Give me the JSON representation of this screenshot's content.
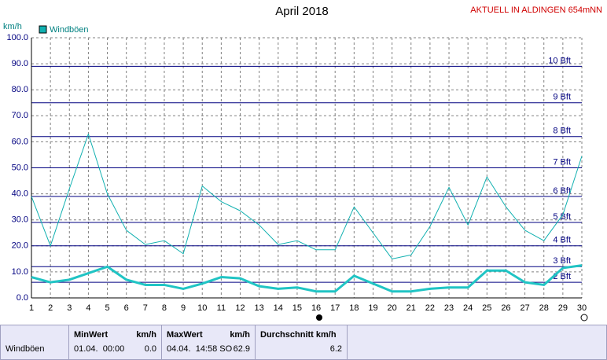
{
  "chart_data": {
    "type": "line",
    "title": "April 2018",
    "station": "AKTUELL IN ALDINGEN 654mNN",
    "y_label": "km/h",
    "x": [
      1,
      2,
      3,
      4,
      5,
      6,
      7,
      8,
      9,
      10,
      11,
      12,
      13,
      14,
      15,
      16,
      17,
      18,
      19,
      20,
      21,
      22,
      23,
      24,
      25,
      26,
      27,
      28,
      29,
      30
    ],
    "xlim": [
      1,
      30
    ],
    "xticks": [
      1,
      2,
      3,
      4,
      5,
      6,
      7,
      8,
      9,
      10,
      11,
      12,
      13,
      14,
      15,
      16,
      17,
      18,
      19,
      20,
      21,
      22,
      23,
      24,
      25,
      26,
      27,
      28,
      29,
      30
    ],
    "ylim": [
      0,
      100
    ],
    "yticks": [
      {
        "value": 0,
        "label": "0.0"
      },
      {
        "value": 10,
        "label": "10.0"
      },
      {
        "value": 20,
        "label": "20.0"
      },
      {
        "value": 30,
        "label": "30.0"
      },
      {
        "value": 40,
        "label": "40.0"
      },
      {
        "value": 50,
        "label": "50.0"
      },
      {
        "value": 60,
        "label": "60.0"
      },
      {
        "value": 70,
        "label": "70.0"
      },
      {
        "value": 80,
        "label": "80.0"
      },
      {
        "value": 90,
        "label": "90.0"
      },
      {
        "value": 100,
        "label": "100.0"
      }
    ],
    "grid": true,
    "legend": "top-left",
    "beaufort": [
      {
        "value": 6,
        "label": "2 Bft"
      },
      {
        "value": 12,
        "label": "3 Bft"
      },
      {
        "value": 20,
        "label": "4 Bft"
      },
      {
        "value": 29,
        "label": "5 Bft"
      },
      {
        "value": 39,
        "label": "6 Bft"
      },
      {
        "value": 50,
        "label": "7 Bft"
      },
      {
        "value": 62,
        "label": "8 Bft"
      },
      {
        "value": 75,
        "label": "9 Bft"
      },
      {
        "value": 89,
        "label": "10 Bft"
      }
    ],
    "series": [
      {
        "name": "Windböen",
        "color": "#10b0b0",
        "width": 1,
        "values": [
          39,
          20,
          42,
          63,
          40,
          26,
          20.5,
          22,
          17,
          43,
          37,
          33.5,
          28,
          20.5,
          22,
          18.5,
          18.5,
          35,
          25,
          15,
          16.5,
          27.5,
          42.5,
          28,
          46.5,
          35,
          26,
          22,
          32,
          54.5
        ]
      },
      {
        "color": "#20c4c4",
        "width": 3,
        "values": [
          8,
          6,
          7,
          9.5,
          12,
          7,
          5,
          5,
          3.5,
          5.5,
          8,
          7.5,
          4.5,
          3.5,
          4,
          2.5,
          2.5,
          8.5,
          5.5,
          2.5,
          2.5,
          3.5,
          4,
          4,
          10.5,
          10.5,
          6,
          5,
          11.5,
          12.5
        ]
      }
    ]
  },
  "stats": {
    "row_label": "Windböen",
    "min": {
      "header": "MinWert",
      "unit": "km/h",
      "time": "01.04.  00:00",
      "value": "0.0"
    },
    "max": {
      "header": "MaxWert",
      "unit": "km/h",
      "time": "04.04.  14:58 SO",
      "value": "62.9"
    },
    "avg": {
      "header": "Durchschnitt km/h",
      "value": "6.2"
    }
  }
}
